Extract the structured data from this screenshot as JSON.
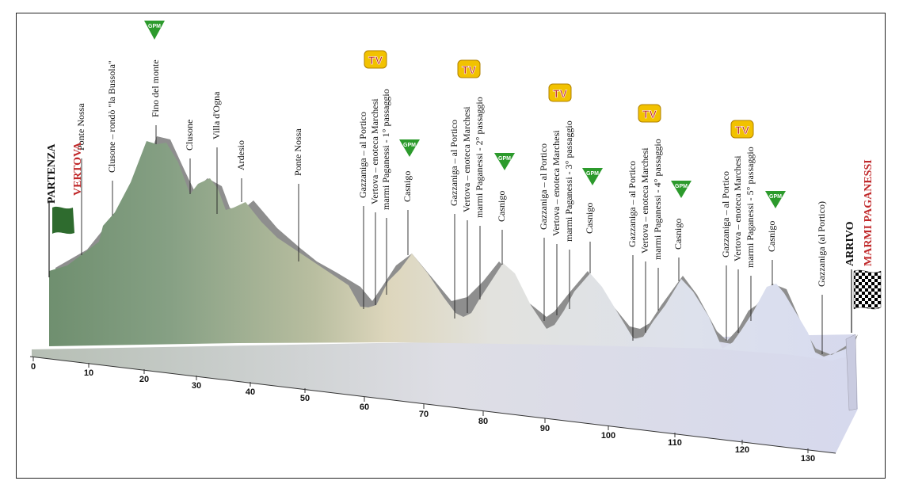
{
  "colors": {
    "start_flag": "#2e6b2e",
    "red_text": "#c0282a",
    "gpm_badge": "#2c9a2c",
    "tv_badge": "#f2c200",
    "tv_text": "#c0282a"
  },
  "start": {
    "line1": "PARTENZA",
    "line2": "VERTOVA"
  },
  "finish": {
    "line1": "ARRIVO",
    "line2": "MARMI PAGANESSI"
  },
  "badges": {
    "gpm": "GPM",
    "tv": "TV"
  },
  "axis": {
    "ticks": [
      "0",
      "10",
      "20",
      "30",
      "40",
      "50",
      "60",
      "70",
      "80",
      "90",
      "100",
      "110",
      "120",
      "130"
    ]
  },
  "labels": [
    {
      "text": "Ponte Nossa"
    },
    {
      "text": "Clusone – rondò \"la Bussola\""
    },
    {
      "text": "Fino del monte"
    },
    {
      "text": "Clusone"
    },
    {
      "text": "Villa d'Ogna"
    },
    {
      "text": "Ardesio"
    },
    {
      "text": "Ponte Nossa"
    },
    {
      "text": "Gazzaniga – al Portico"
    },
    {
      "text": "Vertova – enoteca Marchesi"
    },
    {
      "text": "marmi Paganessi - 1° passaggio"
    },
    {
      "text": "Casnigo"
    },
    {
      "text": "Gazzaniga – al Portico"
    },
    {
      "text": "Vertova – enoteca Marchesi"
    },
    {
      "text": "marmi Paganessi - 2° passaggio"
    },
    {
      "text": "Casnigo"
    },
    {
      "text": "Gazzaniga – al Portico"
    },
    {
      "text": "Vertova – enoteca Marchesi"
    },
    {
      "text": "marmi Paganessi - 3° passaggio"
    },
    {
      "text": "Casnigo"
    },
    {
      "text": "Gazzaniga – al Portico"
    },
    {
      "text": "Vertova – enoteca Marchesi"
    },
    {
      "text": "marmi Paganessi - 4° passaggio"
    },
    {
      "text": "Casnigo"
    },
    {
      "text": "Gazzaniga – al Portico"
    },
    {
      "text": "Vertova – enoteca Marchesi"
    },
    {
      "text": "marmi Paganessi - 5° passaggio"
    },
    {
      "text": "Casnigo"
    },
    {
      "text": "Gazzaniga (al Portico)"
    }
  ]
}
